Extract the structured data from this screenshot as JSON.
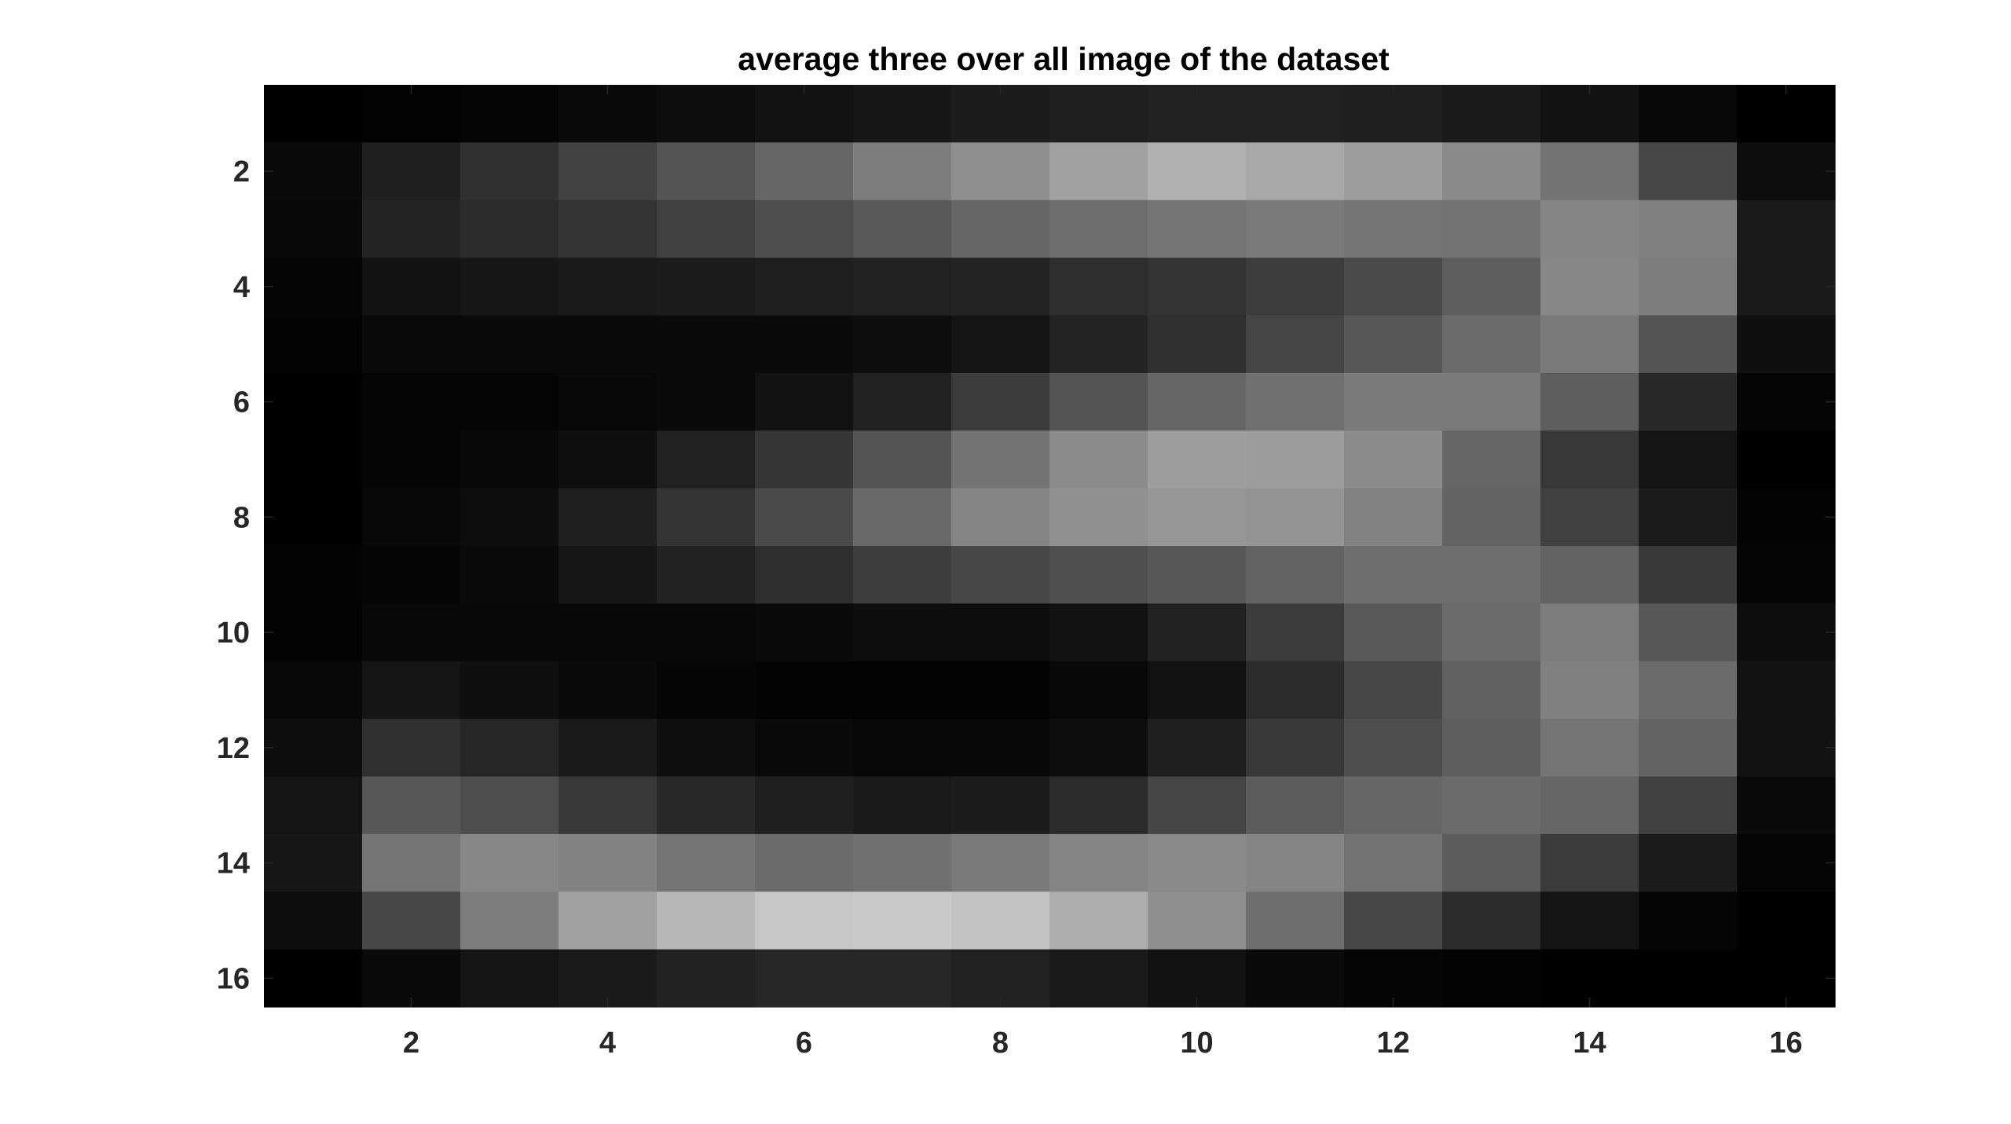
{
  "chart_data": {
    "type": "heatmap",
    "title": "average three over all image of the dataset",
    "xlabel": "",
    "ylabel": "",
    "colormap": "gray",
    "color_range": [
      0,
      1
    ],
    "x": [
      1,
      2,
      3,
      4,
      5,
      6,
      7,
      8,
      9,
      10,
      11,
      12,
      13,
      14,
      15,
      16
    ],
    "y": [
      1,
      2,
      3,
      4,
      5,
      6,
      7,
      8,
      9,
      10,
      11,
      12,
      13,
      14,
      15,
      16
    ],
    "xlim": [
      0.5,
      16.5
    ],
    "ylim": [
      0.5,
      16.5
    ],
    "y_reversed": true,
    "xticks": [
      2,
      4,
      6,
      8,
      10,
      12,
      14,
      16
    ],
    "yticks": [
      2,
      4,
      6,
      8,
      10,
      12,
      14,
      16
    ],
    "values": [
      [
        0.0,
        0.01,
        0.02,
        0.04,
        0.05,
        0.07,
        0.09,
        0.11,
        0.12,
        0.13,
        0.13,
        0.12,
        0.1,
        0.07,
        0.03,
        0.0
      ],
      [
        0.04,
        0.12,
        0.19,
        0.26,
        0.33,
        0.4,
        0.49,
        0.56,
        0.63,
        0.69,
        0.66,
        0.62,
        0.54,
        0.45,
        0.28,
        0.05
      ],
      [
        0.03,
        0.14,
        0.17,
        0.2,
        0.25,
        0.3,
        0.35,
        0.4,
        0.43,
        0.46,
        0.48,
        0.46,
        0.45,
        0.52,
        0.5,
        0.1
      ],
      [
        0.02,
        0.07,
        0.09,
        0.1,
        0.11,
        0.12,
        0.13,
        0.14,
        0.18,
        0.2,
        0.24,
        0.29,
        0.37,
        0.53,
        0.49,
        0.1
      ],
      [
        0.01,
        0.04,
        0.04,
        0.04,
        0.04,
        0.04,
        0.05,
        0.08,
        0.14,
        0.19,
        0.27,
        0.34,
        0.42,
        0.48,
        0.33,
        0.06
      ],
      [
        0.0,
        0.02,
        0.02,
        0.03,
        0.04,
        0.07,
        0.13,
        0.23,
        0.33,
        0.4,
        0.44,
        0.48,
        0.48,
        0.37,
        0.16,
        0.02
      ],
      [
        0.0,
        0.02,
        0.03,
        0.06,
        0.13,
        0.21,
        0.33,
        0.45,
        0.55,
        0.62,
        0.61,
        0.55,
        0.4,
        0.22,
        0.08,
        0.0
      ],
      [
        0.0,
        0.03,
        0.05,
        0.12,
        0.2,
        0.29,
        0.41,
        0.52,
        0.57,
        0.59,
        0.58,
        0.51,
        0.39,
        0.25,
        0.11,
        0.01
      ],
      [
        0.01,
        0.02,
        0.04,
        0.09,
        0.13,
        0.18,
        0.24,
        0.28,
        0.31,
        0.34,
        0.39,
        0.43,
        0.43,
        0.39,
        0.22,
        0.02
      ],
      [
        0.01,
        0.03,
        0.03,
        0.03,
        0.03,
        0.04,
        0.05,
        0.05,
        0.07,
        0.13,
        0.23,
        0.35,
        0.42,
        0.49,
        0.34,
        0.05
      ],
      [
        0.03,
        0.08,
        0.06,
        0.04,
        0.02,
        0.01,
        0.01,
        0.01,
        0.03,
        0.07,
        0.17,
        0.28,
        0.38,
        0.5,
        0.42,
        0.07
      ],
      [
        0.05,
        0.19,
        0.15,
        0.1,
        0.06,
        0.04,
        0.03,
        0.03,
        0.05,
        0.12,
        0.22,
        0.3,
        0.37,
        0.46,
        0.39,
        0.07
      ],
      [
        0.08,
        0.34,
        0.3,
        0.22,
        0.16,
        0.12,
        0.1,
        0.11,
        0.17,
        0.27,
        0.36,
        0.4,
        0.42,
        0.4,
        0.25,
        0.04
      ],
      [
        0.09,
        0.46,
        0.53,
        0.51,
        0.46,
        0.42,
        0.44,
        0.48,
        0.52,
        0.54,
        0.52,
        0.45,
        0.36,
        0.23,
        0.11,
        0.02
      ],
      [
        0.05,
        0.28,
        0.49,
        0.63,
        0.72,
        0.78,
        0.79,
        0.76,
        0.68,
        0.56,
        0.43,
        0.28,
        0.17,
        0.08,
        0.02,
        0.0
      ],
      [
        0.0,
        0.04,
        0.08,
        0.1,
        0.13,
        0.15,
        0.15,
        0.13,
        0.1,
        0.07,
        0.04,
        0.02,
        0.01,
        0.0,
        0.0,
        0.0
      ]
    ]
  }
}
